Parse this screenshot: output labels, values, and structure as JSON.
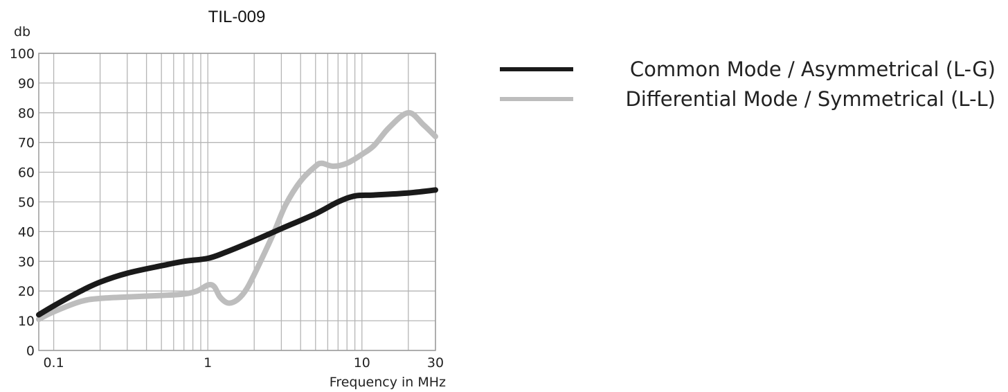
{
  "chart_data": {
    "type": "line",
    "title": "TIL-009",
    "xlabel": "Frequency in MHz",
    "ylabel": "db",
    "x_scale": "log",
    "xlim": [
      0.08,
      30
    ],
    "ylim": [
      0,
      100
    ],
    "y_ticks": [
      0,
      10,
      20,
      30,
      40,
      50,
      60,
      70,
      80,
      90,
      100
    ],
    "x_tick_labels": [
      {
        "value": 0.1,
        "label": "0.1"
      },
      {
        "value": 1,
        "label": "1"
      },
      {
        "value": 10,
        "label": "10"
      },
      {
        "value": 30,
        "label": "30"
      }
    ],
    "x_grid": [
      0.1,
      0.2,
      0.3,
      0.4,
      0.5,
      0.6,
      0.7,
      0.8,
      0.9,
      1,
      2,
      3,
      4,
      5,
      6,
      7,
      8,
      9,
      10,
      20,
      30
    ],
    "grid": true,
    "legend_position": "top-right",
    "series": [
      {
        "name": "Common Mode / Asymmetrical (L-G)",
        "color": "#1a1a1a",
        "points": [
          [
            0.08,
            12
          ],
          [
            0.1,
            15
          ],
          [
            0.15,
            20
          ],
          [
            0.2,
            23
          ],
          [
            0.3,
            26
          ],
          [
            0.5,
            28.5
          ],
          [
            0.7,
            30
          ],
          [
            1.0,
            31
          ],
          [
            1.3,
            33
          ],
          [
            2,
            37
          ],
          [
            3,
            41
          ],
          [
            5,
            46
          ],
          [
            7,
            50
          ],
          [
            9,
            52
          ],
          [
            12,
            52.3
          ],
          [
            20,
            53
          ],
          [
            30,
            54
          ]
        ]
      },
      {
        "name": "Differential Mode / Symmetrical (L-L)",
        "color": "#bdbdbd",
        "points": [
          [
            0.08,
            10.5
          ],
          [
            0.1,
            13
          ],
          [
            0.15,
            16.5
          ],
          [
            0.2,
            17.5
          ],
          [
            0.3,
            18
          ],
          [
            0.5,
            18.5
          ],
          [
            0.7,
            19
          ],
          [
            0.85,
            20
          ],
          [
            1.0,
            22
          ],
          [
            1.1,
            21.5
          ],
          [
            1.2,
            18
          ],
          [
            1.35,
            16
          ],
          [
            1.55,
            17
          ],
          [
            1.8,
            21
          ],
          [
            2.2,
            30
          ],
          [
            2.7,
            40
          ],
          [
            3.2,
            49
          ],
          [
            4,
            57
          ],
          [
            5,
            62
          ],
          [
            5.5,
            63
          ],
          [
            6.5,
            62
          ],
          [
            8,
            63
          ],
          [
            10,
            66
          ],
          [
            12,
            69
          ],
          [
            15,
            75
          ],
          [
            20,
            80
          ],
          [
            25,
            76
          ],
          [
            30,
            72
          ]
        ]
      }
    ]
  }
}
